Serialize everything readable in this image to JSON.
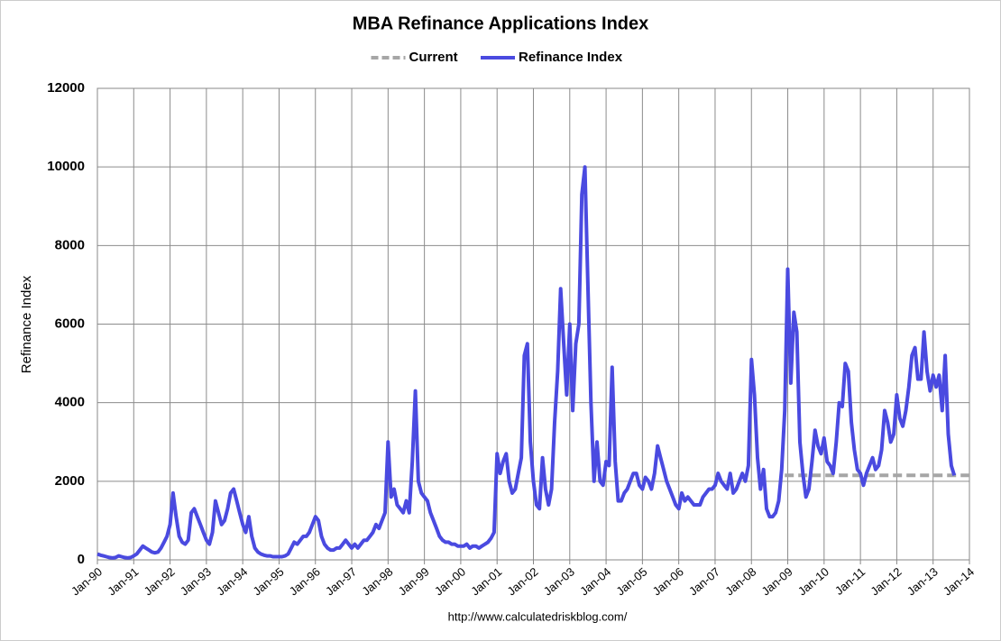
{
  "chart_data": {
    "type": "line",
    "title": "MBA Refinance Applications Index",
    "y_label": "Refinance Index",
    "source": "http://www.calculatedriskblog.com/",
    "xlim": [
      "1990-01",
      "2014-01"
    ],
    "ylim": [
      0,
      12000
    ],
    "yticks": [
      0,
      2000,
      4000,
      6000,
      8000,
      10000,
      12000
    ],
    "xticks": [
      {
        "value": "1990-01",
        "label": "Jan-90"
      },
      {
        "value": "1991-01",
        "label": "Jan-91"
      },
      {
        "value": "1992-01",
        "label": "Jan-92"
      },
      {
        "value": "1993-01",
        "label": "Jan-93"
      },
      {
        "value": "1994-01",
        "label": "Jan-94"
      },
      {
        "value": "1995-01",
        "label": "Jan-95"
      },
      {
        "value": "1996-01",
        "label": "Jan-96"
      },
      {
        "value": "1997-01",
        "label": "Jan-97"
      },
      {
        "value": "1998-01",
        "label": "Jan-98"
      },
      {
        "value": "1999-01",
        "label": "Jan-99"
      },
      {
        "value": "2000-01",
        "label": "Jan-00"
      },
      {
        "value": "2001-01",
        "label": "Jan-01"
      },
      {
        "value": "2002-01",
        "label": "Jan-02"
      },
      {
        "value": "2003-01",
        "label": "Jan-03"
      },
      {
        "value": "2004-01",
        "label": "Jan-04"
      },
      {
        "value": "2005-01",
        "label": "Jan-05"
      },
      {
        "value": "2006-01",
        "label": "Jan-06"
      },
      {
        "value": "2007-01",
        "label": "Jan-07"
      },
      {
        "value": "2008-01",
        "label": "Jan-08"
      },
      {
        "value": "2009-01",
        "label": "Jan-09"
      },
      {
        "value": "2010-01",
        "label": "Jan-10"
      },
      {
        "value": "2011-01",
        "label": "Jan-11"
      },
      {
        "value": "2012-01",
        "label": "Jan-12"
      },
      {
        "value": "2013-01",
        "label": "Jan-13"
      },
      {
        "value": "2014-01",
        "label": "Jan-14"
      }
    ],
    "grid": true,
    "legend": "top",
    "series": [
      {
        "name": "Current",
        "color": "#a6a6a6",
        "dashed": true,
        "x": [
          "2008-12",
          "2014-01"
        ],
        "values": [
          2150,
          2150
        ]
      },
      {
        "name": "Refinance Index",
        "color": "#4a4ae0",
        "dashed": false,
        "x": [
          "1990-01",
          "1990-02",
          "1990-03",
          "1990-04",
          "1990-05",
          "1990-06",
          "1990-07",
          "1990-08",
          "1990-09",
          "1990-10",
          "1990-11",
          "1990-12",
          "1991-01",
          "1991-02",
          "1991-03",
          "1991-04",
          "1991-05",
          "1991-06",
          "1991-07",
          "1991-08",
          "1991-09",
          "1991-10",
          "1991-11",
          "1991-12",
          "1992-01",
          "1992-02",
          "1992-03",
          "1992-04",
          "1992-05",
          "1992-06",
          "1992-07",
          "1992-08",
          "1992-09",
          "1992-10",
          "1992-11",
          "1992-12",
          "1993-01",
          "1993-02",
          "1993-03",
          "1993-04",
          "1993-05",
          "1993-06",
          "1993-07",
          "1993-08",
          "1993-09",
          "1993-10",
          "1993-11",
          "1993-12",
          "1994-01",
          "1994-02",
          "1994-03",
          "1994-04",
          "1994-05",
          "1994-06",
          "1994-07",
          "1994-08",
          "1994-09",
          "1994-10",
          "1994-11",
          "1994-12",
          "1995-01",
          "1995-02",
          "1995-03",
          "1995-04",
          "1995-05",
          "1995-06",
          "1995-07",
          "1995-08",
          "1995-09",
          "1995-10",
          "1995-11",
          "1995-12",
          "1996-01",
          "1996-02",
          "1996-03",
          "1996-04",
          "1996-05",
          "1996-06",
          "1996-07",
          "1996-08",
          "1996-09",
          "1996-10",
          "1996-11",
          "1996-12",
          "1997-01",
          "1997-02",
          "1997-03",
          "1997-04",
          "1997-05",
          "1997-06",
          "1997-07",
          "1997-08",
          "1997-09",
          "1997-10",
          "1997-11",
          "1997-12",
          "1998-01",
          "1998-02",
          "1998-03",
          "1998-04",
          "1998-05",
          "1998-06",
          "1998-07",
          "1998-08",
          "1998-09",
          "1998-10",
          "1998-11",
          "1998-12",
          "1999-01",
          "1999-02",
          "1999-03",
          "1999-04",
          "1999-05",
          "1999-06",
          "1999-07",
          "1999-08",
          "1999-09",
          "1999-10",
          "1999-11",
          "1999-12",
          "2000-01",
          "2000-02",
          "2000-03",
          "2000-04",
          "2000-05",
          "2000-06",
          "2000-07",
          "2000-08",
          "2000-09",
          "2000-10",
          "2000-11",
          "2000-12",
          "2001-01",
          "2001-02",
          "2001-03",
          "2001-04",
          "2001-05",
          "2001-06",
          "2001-07",
          "2001-08",
          "2001-09",
          "2001-10",
          "2001-11",
          "2001-12",
          "2002-01",
          "2002-02",
          "2002-03",
          "2002-04",
          "2002-05",
          "2002-06",
          "2002-07",
          "2002-08",
          "2002-09",
          "2002-10",
          "2002-11",
          "2002-12",
          "2003-01",
          "2003-02",
          "2003-03",
          "2003-04",
          "2003-05",
          "2003-06",
          "2003-07",
          "2003-08",
          "2003-09",
          "2003-10",
          "2003-11",
          "2003-12",
          "2004-01",
          "2004-02",
          "2004-03",
          "2004-04",
          "2004-05",
          "2004-06",
          "2004-07",
          "2004-08",
          "2004-09",
          "2004-10",
          "2004-11",
          "2004-12",
          "2005-01",
          "2005-02",
          "2005-03",
          "2005-04",
          "2005-05",
          "2005-06",
          "2005-07",
          "2005-08",
          "2005-09",
          "2005-10",
          "2005-11",
          "2005-12",
          "2006-01",
          "2006-02",
          "2006-03",
          "2006-04",
          "2006-05",
          "2006-06",
          "2006-07",
          "2006-08",
          "2006-09",
          "2006-10",
          "2006-11",
          "2006-12",
          "2007-01",
          "2007-02",
          "2007-03",
          "2007-04",
          "2007-05",
          "2007-06",
          "2007-07",
          "2007-08",
          "2007-09",
          "2007-10",
          "2007-11",
          "2007-12",
          "2008-01",
          "2008-02",
          "2008-03",
          "2008-04",
          "2008-05",
          "2008-06",
          "2008-07",
          "2008-08",
          "2008-09",
          "2008-10",
          "2008-11",
          "2008-12",
          "2009-01",
          "2009-02",
          "2009-03",
          "2009-04",
          "2009-05",
          "2009-06",
          "2009-07",
          "2009-08",
          "2009-09",
          "2009-10",
          "2009-11",
          "2009-12",
          "2010-01",
          "2010-02",
          "2010-03",
          "2010-04",
          "2010-05",
          "2010-06",
          "2010-07",
          "2010-08",
          "2010-09",
          "2010-10",
          "2010-11",
          "2010-12",
          "2011-01",
          "2011-02",
          "2011-03",
          "2011-04",
          "2011-05",
          "2011-06",
          "2011-07",
          "2011-08",
          "2011-09",
          "2011-10",
          "2011-11",
          "2011-12",
          "2012-01",
          "2012-02",
          "2012-03",
          "2012-04",
          "2012-05",
          "2012-06",
          "2012-07",
          "2012-08",
          "2012-09",
          "2012-10",
          "2012-11",
          "2012-12",
          "2013-01",
          "2013-02",
          "2013-03",
          "2013-04",
          "2013-05",
          "2013-06",
          "2013-07",
          "2013-08"
        ],
        "values": [
          150,
          120,
          100,
          80,
          60,
          50,
          60,
          100,
          80,
          60,
          50,
          60,
          100,
          150,
          250,
          350,
          300,
          250,
          200,
          180,
          200,
          300,
          450,
          600,
          900,
          1700,
          1100,
          600,
          450,
          400,
          500,
          1200,
          1300,
          1100,
          900,
          700,
          500,
          400,
          700,
          1500,
          1200,
          900,
          1000,
          1300,
          1700,
          1800,
          1500,
          1200,
          900,
          700,
          1100,
          600,
          300,
          200,
          150,
          120,
          100,
          100,
          80,
          80,
          80,
          80,
          100,
          150,
          300,
          450,
          400,
          500,
          600,
          600,
          700,
          900,
          1100,
          1000,
          600,
          400,
          300,
          250,
          250,
          300,
          300,
          400,
          500,
          400,
          300,
          400,
          300,
          400,
          500,
          500,
          600,
          700,
          900,
          800,
          1000,
          1200,
          3000,
          1600,
          1800,
          1400,
          1300,
          1200,
          1500,
          1200,
          2500,
          4300,
          2000,
          1700,
          1600,
          1500,
          1200,
          1000,
          800,
          600,
          500,
          450,
          450,
          400,
          400,
          350,
          350,
          350,
          400,
          300,
          350,
          350,
          300,
          350,
          400,
          450,
          550,
          700,
          2700,
          2200,
          2500,
          2700,
          2000,
          1700,
          1800,
          2200,
          2600,
          5200,
          5500,
          3000,
          2000,
          1400,
          1300,
          2600,
          1800,
          1400,
          1800,
          3500,
          4800,
          6900,
          5500,
          4200,
          6000,
          3800,
          5500,
          6000,
          9300,
          10000,
          7000,
          4000,
          2000,
          3000,
          2000,
          1900,
          2500,
          2400,
          4900,
          2500,
          1500,
          1500,
          1700,
          1800,
          2000,
          2200,
          2200,
          1900,
          1800,
          2100,
          2000,
          1800,
          2200,
          2900,
          2600,
          2300,
          2000,
          1800,
          1600,
          1400,
          1300,
          1700,
          1500,
          1600,
          1500,
          1400,
          1400,
          1400,
          1600,
          1700,
          1800,
          1800,
          1900,
          2200,
          2000,
          1900,
          1800,
          2200,
          1700,
          1800,
          2000,
          2200,
          2000,
          2400,
          5100,
          4200,
          2600,
          1800,
          2300,
          1300,
          1100,
          1100,
          1200,
          1500,
          2300,
          3800,
          7400,
          4500,
          6300,
          5800,
          3000,
          2200,
          1600,
          1800,
          2500,
          3300,
          2900,
          2700,
          3100,
          2500,
          2400,
          2200,
          3000,
          4000,
          3900,
          5000,
          4800,
          3500,
          2800,
          2300,
          2200,
          1900,
          2200,
          2400,
          2600,
          2300,
          2400,
          2800,
          3800,
          3500,
          3000,
          3200,
          4200,
          3600,
          3400,
          3800,
          4400,
          5200,
          5400,
          4600,
          4600,
          5800,
          4800,
          4300,
          4700,
          4400,
          4700,
          3800,
          5200,
          3200,
          2400,
          2150
        ]
      }
    ]
  }
}
